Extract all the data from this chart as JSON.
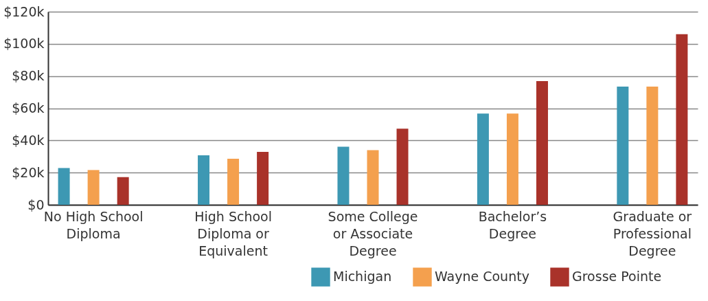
{
  "chart_data": {
    "type": "bar",
    "categories": [
      "No High School Diploma",
      "High School Diploma or Equivalent",
      "Some College or Associate Degree",
      "Bachelor’s Degree",
      "Graduate or Professional Degree"
    ],
    "series": [
      {
        "name": "Michigan",
        "color": "#3d98b3",
        "values": [
          22.9,
          30.7,
          36.1,
          56.7,
          73.4
        ]
      },
      {
        "name": "Wayne County",
        "color": "#f4a04e",
        "values": [
          21.6,
          28.6,
          34.0,
          56.7,
          73.4
        ]
      },
      {
        "name": "Grosse Pointe",
        "color": "#a9322a",
        "values": [
          17.2,
          32.9,
          47.3,
          76.9,
          106.0
        ]
      }
    ],
    "ylim": [
      0,
      120
    ],
    "yticks": [
      {
        "value": 0,
        "label": "$0"
      },
      {
        "value": 20,
        "label": "$20k"
      },
      {
        "value": 40,
        "label": "$40k"
      },
      {
        "value": 60,
        "label": "$60k"
      },
      {
        "value": 80,
        "label": "$80k"
      },
      {
        "value": 100,
        "label": "$100k"
      },
      {
        "value": 120,
        "label": "$120k"
      }
    ],
    "grid": "y",
    "legend": "bottom right"
  }
}
